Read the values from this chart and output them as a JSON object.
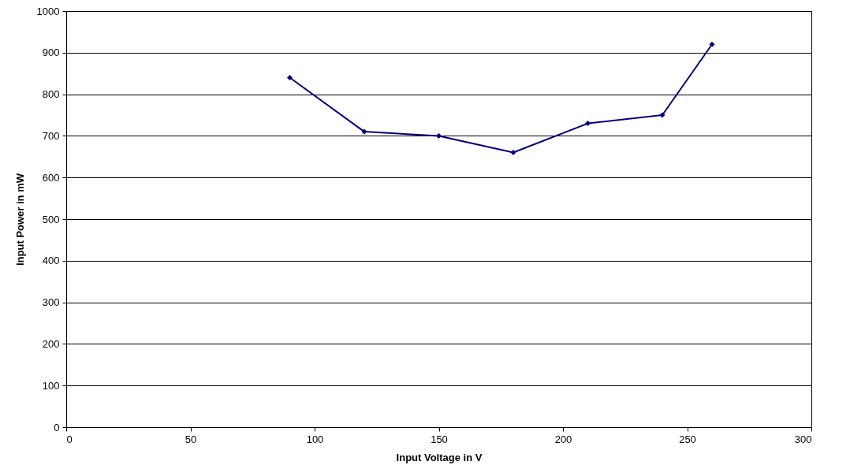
{
  "chart_data": {
    "type": "line",
    "xlabel": "Input Voltage in V",
    "ylabel": "Input Power in mW",
    "x": [
      90,
      120,
      150,
      180,
      210,
      240,
      260
    ],
    "series": [
      {
        "color": "#000080",
        "values": [
          840,
          710,
          700,
          660,
          730,
          750,
          920
        ]
      }
    ],
    "xlim": [
      0,
      300
    ],
    "xticks": [
      0,
      50,
      100,
      150,
      200,
      250,
      300
    ],
    "ylim": [
      0,
      1000
    ],
    "yticks": [
      0,
      100,
      200,
      300,
      400,
      500,
      600,
      700,
      800,
      900,
      1000
    ],
    "grid": "y",
    "marker": "diamond",
    "line_style": "solid"
  }
}
